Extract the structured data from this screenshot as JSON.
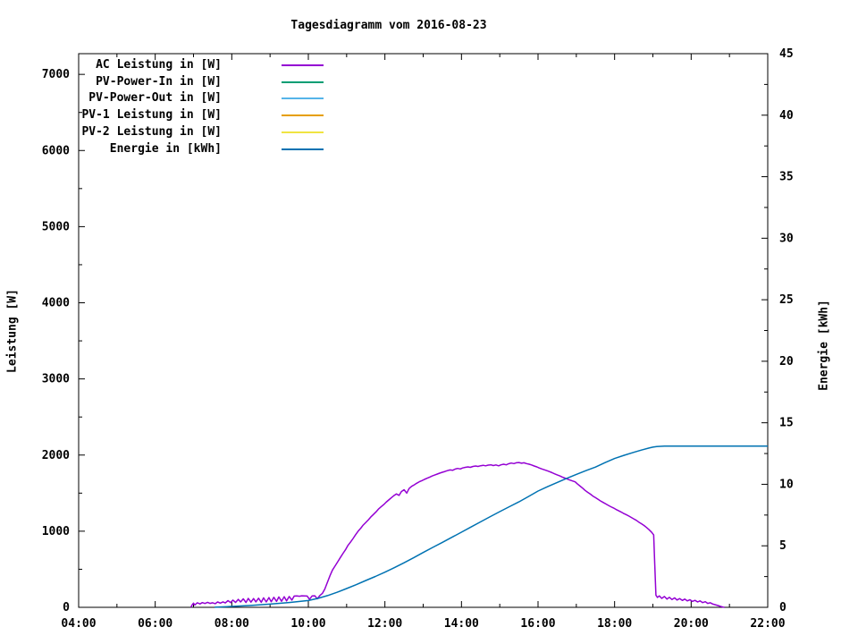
{
  "chart_data": {
    "type": "line",
    "title": "Tagesdiagramm vom 2016-08-23",
    "ylabel_left": "Leistung [W]",
    "ylabel_right": "Energie [kWh]",
    "grid": false,
    "legend_position": "top-left-inside",
    "x_axis": {
      "start_hour": 4,
      "end_hour": 22,
      "major_step_hours": 2,
      "minor_step_hours": 1,
      "tick_labels": [
        "04:00",
        "06:00",
        "08:00",
        "10:00",
        "12:00",
        "14:00",
        "16:00",
        "18:00",
        "20:00",
        "22:00"
      ]
    },
    "y_left_axis": {
      "min": 0,
      "max": 7272,
      "major_step": 1000,
      "minor_step": 500,
      "tick_labels": [
        "0",
        "1000",
        "2000",
        "3000",
        "4000",
        "5000",
        "6000",
        "7000"
      ]
    },
    "y_right_axis": {
      "min": 0,
      "max": 45,
      "major_step": 5,
      "minor_step": 2.5,
      "tick_labels": [
        "0",
        "5",
        "10",
        "15",
        "20",
        "25",
        "30",
        "35",
        "40",
        "45"
      ]
    },
    "series": [
      {
        "name": "AC Leistung in [W]",
        "color": "#9400D3",
        "axis": "left",
        "points": [
          [
            6.93,
            0
          ],
          [
            6.97,
            35
          ],
          [
            7.0,
            55
          ],
          [
            7.03,
            30
          ],
          [
            7.1,
            60
          ],
          [
            7.17,
            45
          ],
          [
            7.23,
            62
          ],
          [
            7.3,
            50
          ],
          [
            7.37,
            66
          ],
          [
            7.43,
            52
          ],
          [
            7.5,
            60
          ],
          [
            7.57,
            48
          ],
          [
            7.63,
            70
          ],
          [
            7.7,
            55
          ],
          [
            7.77,
            72
          ],
          [
            7.83,
            58
          ],
          [
            7.9,
            88
          ],
          [
            7.97,
            62
          ],
          [
            8.03,
            95
          ],
          [
            8.1,
            65
          ],
          [
            8.17,
            105
          ],
          [
            8.23,
            70
          ],
          [
            8.3,
            112
          ],
          [
            8.37,
            64
          ],
          [
            8.43,
            118
          ],
          [
            8.5,
            68
          ],
          [
            8.57,
            115
          ],
          [
            8.63,
            72
          ],
          [
            8.7,
            120
          ],
          [
            8.77,
            66
          ],
          [
            8.83,
            125
          ],
          [
            8.9,
            70
          ],
          [
            8.97,
            128
          ],
          [
            9.03,
            74
          ],
          [
            9.1,
            132
          ],
          [
            9.17,
            78
          ],
          [
            9.23,
            136
          ],
          [
            9.3,
            80
          ],
          [
            9.37,
            140
          ],
          [
            9.43,
            85
          ],
          [
            9.5,
            142
          ],
          [
            9.57,
            95
          ],
          [
            9.63,
            148
          ],
          [
            9.7,
            150
          ],
          [
            9.77,
            146
          ],
          [
            9.83,
            152
          ],
          [
            9.9,
            150
          ],
          [
            9.97,
            148
          ],
          [
            10.03,
            104
          ],
          [
            10.1,
            150
          ],
          [
            10.17,
            152
          ],
          [
            10.23,
            112
          ],
          [
            10.3,
            155
          ],
          [
            10.37,
            185
          ],
          [
            10.43,
            240
          ],
          [
            10.5,
            330
          ],
          [
            10.57,
            420
          ],
          [
            10.63,
            490
          ],
          [
            10.7,
            545
          ],
          [
            10.77,
            600
          ],
          [
            10.83,
            650
          ],
          [
            10.9,
            705
          ],
          [
            10.97,
            755
          ],
          [
            11.03,
            810
          ],
          [
            11.1,
            855
          ],
          [
            11.17,
            905
          ],
          [
            11.23,
            950
          ],
          [
            11.3,
            1000
          ],
          [
            11.37,
            1040
          ],
          [
            11.43,
            1080
          ],
          [
            11.5,
            1115
          ],
          [
            11.57,
            1150
          ],
          [
            11.63,
            1185
          ],
          [
            11.7,
            1220
          ],
          [
            11.77,
            1255
          ],
          [
            11.83,
            1290
          ],
          [
            11.9,
            1320
          ],
          [
            11.97,
            1350
          ],
          [
            12.03,
            1380
          ],
          [
            12.1,
            1410
          ],
          [
            12.17,
            1440
          ],
          [
            12.23,
            1465
          ],
          [
            12.3,
            1490
          ],
          [
            12.37,
            1470
          ],
          [
            12.43,
            1520
          ],
          [
            12.5,
            1545
          ],
          [
            12.57,
            1500
          ],
          [
            12.63,
            1560
          ],
          [
            12.7,
            1590
          ],
          [
            12.77,
            1610
          ],
          [
            12.83,
            1630
          ],
          [
            12.9,
            1650
          ],
          [
            12.97,
            1665
          ],
          [
            13.03,
            1680
          ],
          [
            13.1,
            1695
          ],
          [
            13.17,
            1710
          ],
          [
            13.23,
            1725
          ],
          [
            13.3,
            1738
          ],
          [
            13.37,
            1750
          ],
          [
            13.43,
            1762
          ],
          [
            13.5,
            1774
          ],
          [
            13.57,
            1785
          ],
          [
            13.63,
            1795
          ],
          [
            13.7,
            1805
          ],
          [
            13.77,
            1800
          ],
          [
            13.83,
            1815
          ],
          [
            13.9,
            1825
          ],
          [
            13.97,
            1818
          ],
          [
            14.03,
            1830
          ],
          [
            14.1,
            1838
          ],
          [
            14.17,
            1845
          ],
          [
            14.23,
            1838
          ],
          [
            14.3,
            1850
          ],
          [
            14.37,
            1856
          ],
          [
            14.43,
            1850
          ],
          [
            14.5,
            1860
          ],
          [
            14.57,
            1866
          ],
          [
            14.63,
            1858
          ],
          [
            14.7,
            1868
          ],
          [
            14.77,
            1872
          ],
          [
            14.83,
            1862
          ],
          [
            14.9,
            1870
          ],
          [
            14.97,
            1858
          ],
          [
            15.03,
            1872
          ],
          [
            15.1,
            1880
          ],
          [
            15.17,
            1872
          ],
          [
            15.23,
            1886
          ],
          [
            15.3,
            1895
          ],
          [
            15.37,
            1888
          ],
          [
            15.43,
            1898
          ],
          [
            15.5,
            1902
          ],
          [
            15.57,
            1893
          ],
          [
            15.63,
            1898
          ],
          [
            15.7,
            1888
          ],
          [
            15.77,
            1880
          ],
          [
            15.83,
            1870
          ],
          [
            15.9,
            1856
          ],
          [
            15.97,
            1844
          ],
          [
            16.03,
            1830
          ],
          [
            16.1,
            1818
          ],
          [
            16.17,
            1806
          ],
          [
            16.23,
            1795
          ],
          [
            16.3,
            1782
          ],
          [
            16.37,
            1768
          ],
          [
            16.43,
            1754
          ],
          [
            16.5,
            1740
          ],
          [
            16.57,
            1726
          ],
          [
            16.63,
            1712
          ],
          [
            16.7,
            1698
          ],
          [
            16.77,
            1684
          ],
          [
            16.83,
            1672
          ],
          [
            16.9,
            1660
          ],
          [
            16.97,
            1648
          ],
          [
            17.03,
            1620
          ],
          [
            17.1,
            1592
          ],
          [
            17.17,
            1564
          ],
          [
            17.23,
            1536
          ],
          [
            17.3,
            1510
          ],
          [
            17.37,
            1486
          ],
          [
            17.43,
            1462
          ],
          [
            17.5,
            1440
          ],
          [
            17.57,
            1418
          ],
          [
            17.63,
            1398
          ],
          [
            17.7,
            1378
          ],
          [
            17.77,
            1358
          ],
          [
            17.83,
            1340
          ],
          [
            17.9,
            1322
          ],
          [
            17.97,
            1305
          ],
          [
            18.03,
            1288
          ],
          [
            18.1,
            1270
          ],
          [
            18.17,
            1252
          ],
          [
            18.23,
            1235
          ],
          [
            18.3,
            1218
          ],
          [
            18.37,
            1200
          ],
          [
            18.43,
            1182
          ],
          [
            18.5,
            1162
          ],
          [
            18.57,
            1142
          ],
          [
            18.63,
            1120
          ],
          [
            18.7,
            1098
          ],
          [
            18.77,
            1075
          ],
          [
            18.83,
            1050
          ],
          [
            18.9,
            1020
          ],
          [
            18.97,
            985
          ],
          [
            19.02,
            950
          ],
          [
            19.05,
            560
          ],
          [
            19.08,
            160
          ],
          [
            19.12,
            130
          ],
          [
            19.17,
            150
          ],
          [
            19.23,
            118
          ],
          [
            19.3,
            142
          ],
          [
            19.37,
            108
          ],
          [
            19.43,
            132
          ],
          [
            19.5,
            102
          ],
          [
            19.57,
            124
          ],
          [
            19.63,
            96
          ],
          [
            19.7,
            115
          ],
          [
            19.77,
            90
          ],
          [
            19.83,
            108
          ],
          [
            19.9,
            84
          ],
          [
            19.97,
            100
          ],
          [
            20.03,
            78
          ],
          [
            20.1,
            92
          ],
          [
            20.17,
            70
          ],
          [
            20.23,
            84
          ],
          [
            20.3,
            62
          ],
          [
            20.37,
            74
          ],
          [
            20.43,
            52
          ],
          [
            20.5,
            60
          ],
          [
            20.57,
            42
          ],
          [
            20.63,
            34
          ],
          [
            20.7,
            24
          ],
          [
            20.77,
            12
          ],
          [
            20.83,
            4
          ],
          [
            20.87,
            0
          ]
        ]
      },
      {
        "name": "PV-Power-In in [W]",
        "color": "#009E73",
        "axis": "left",
        "points": []
      },
      {
        "name": "PV-Power-Out in [W]",
        "color": "#56B4E9",
        "axis": "left",
        "points": []
      },
      {
        "name": "PV-1 Leistung in [W]",
        "color": "#E69F00",
        "axis": "left",
        "points": []
      },
      {
        "name": "PV-2 Leistung in [W]",
        "color": "#F0E442",
        "axis": "left",
        "points": []
      },
      {
        "name": "Energie in [kWh]",
        "color": "#0072B2",
        "axis": "right",
        "points": [
          [
            7.55,
            0.01
          ],
          [
            8.0,
            0.07
          ],
          [
            8.5,
            0.15
          ],
          [
            9.0,
            0.26
          ],
          [
            9.5,
            0.39
          ],
          [
            10.0,
            0.55
          ],
          [
            10.25,
            0.73
          ],
          [
            10.5,
            0.95
          ],
          [
            10.75,
            1.22
          ],
          [
            11.0,
            1.53
          ],
          [
            11.25,
            1.84
          ],
          [
            11.5,
            2.18
          ],
          [
            11.75,
            2.51
          ],
          [
            12.0,
            2.86
          ],
          [
            12.25,
            3.23
          ],
          [
            12.5,
            3.62
          ],
          [
            12.75,
            4.03
          ],
          [
            13.0,
            4.46
          ],
          [
            13.25,
            4.87
          ],
          [
            13.5,
            5.28
          ],
          [
            13.75,
            5.69
          ],
          [
            14.0,
            6.11
          ],
          [
            14.25,
            6.53
          ],
          [
            14.5,
            6.95
          ],
          [
            14.75,
            7.37
          ],
          [
            15.0,
            7.78
          ],
          [
            15.25,
            8.18
          ],
          [
            15.5,
            8.57
          ],
          [
            15.75,
            9.01
          ],
          [
            16.0,
            9.45
          ],
          [
            16.25,
            9.81
          ],
          [
            16.5,
            10.15
          ],
          [
            16.75,
            10.48
          ],
          [
            17.0,
            10.8
          ],
          [
            17.25,
            11.11
          ],
          [
            17.5,
            11.4
          ],
          [
            17.75,
            11.76
          ],
          [
            18.0,
            12.1
          ],
          [
            18.25,
            12.36
          ],
          [
            18.5,
            12.6
          ],
          [
            18.7,
            12.78
          ],
          [
            18.9,
            12.95
          ],
          [
            19.0,
            13.02
          ],
          [
            19.1,
            13.07
          ],
          [
            19.3,
            13.1
          ],
          [
            19.6,
            13.1
          ],
          [
            20.0,
            13.1
          ],
          [
            20.5,
            13.1
          ],
          [
            21.0,
            13.1
          ],
          [
            21.5,
            13.1
          ],
          [
            22.0,
            13.1
          ]
        ]
      }
    ],
    "plot_frame_color": "#000000",
    "text_color": "#000000"
  }
}
